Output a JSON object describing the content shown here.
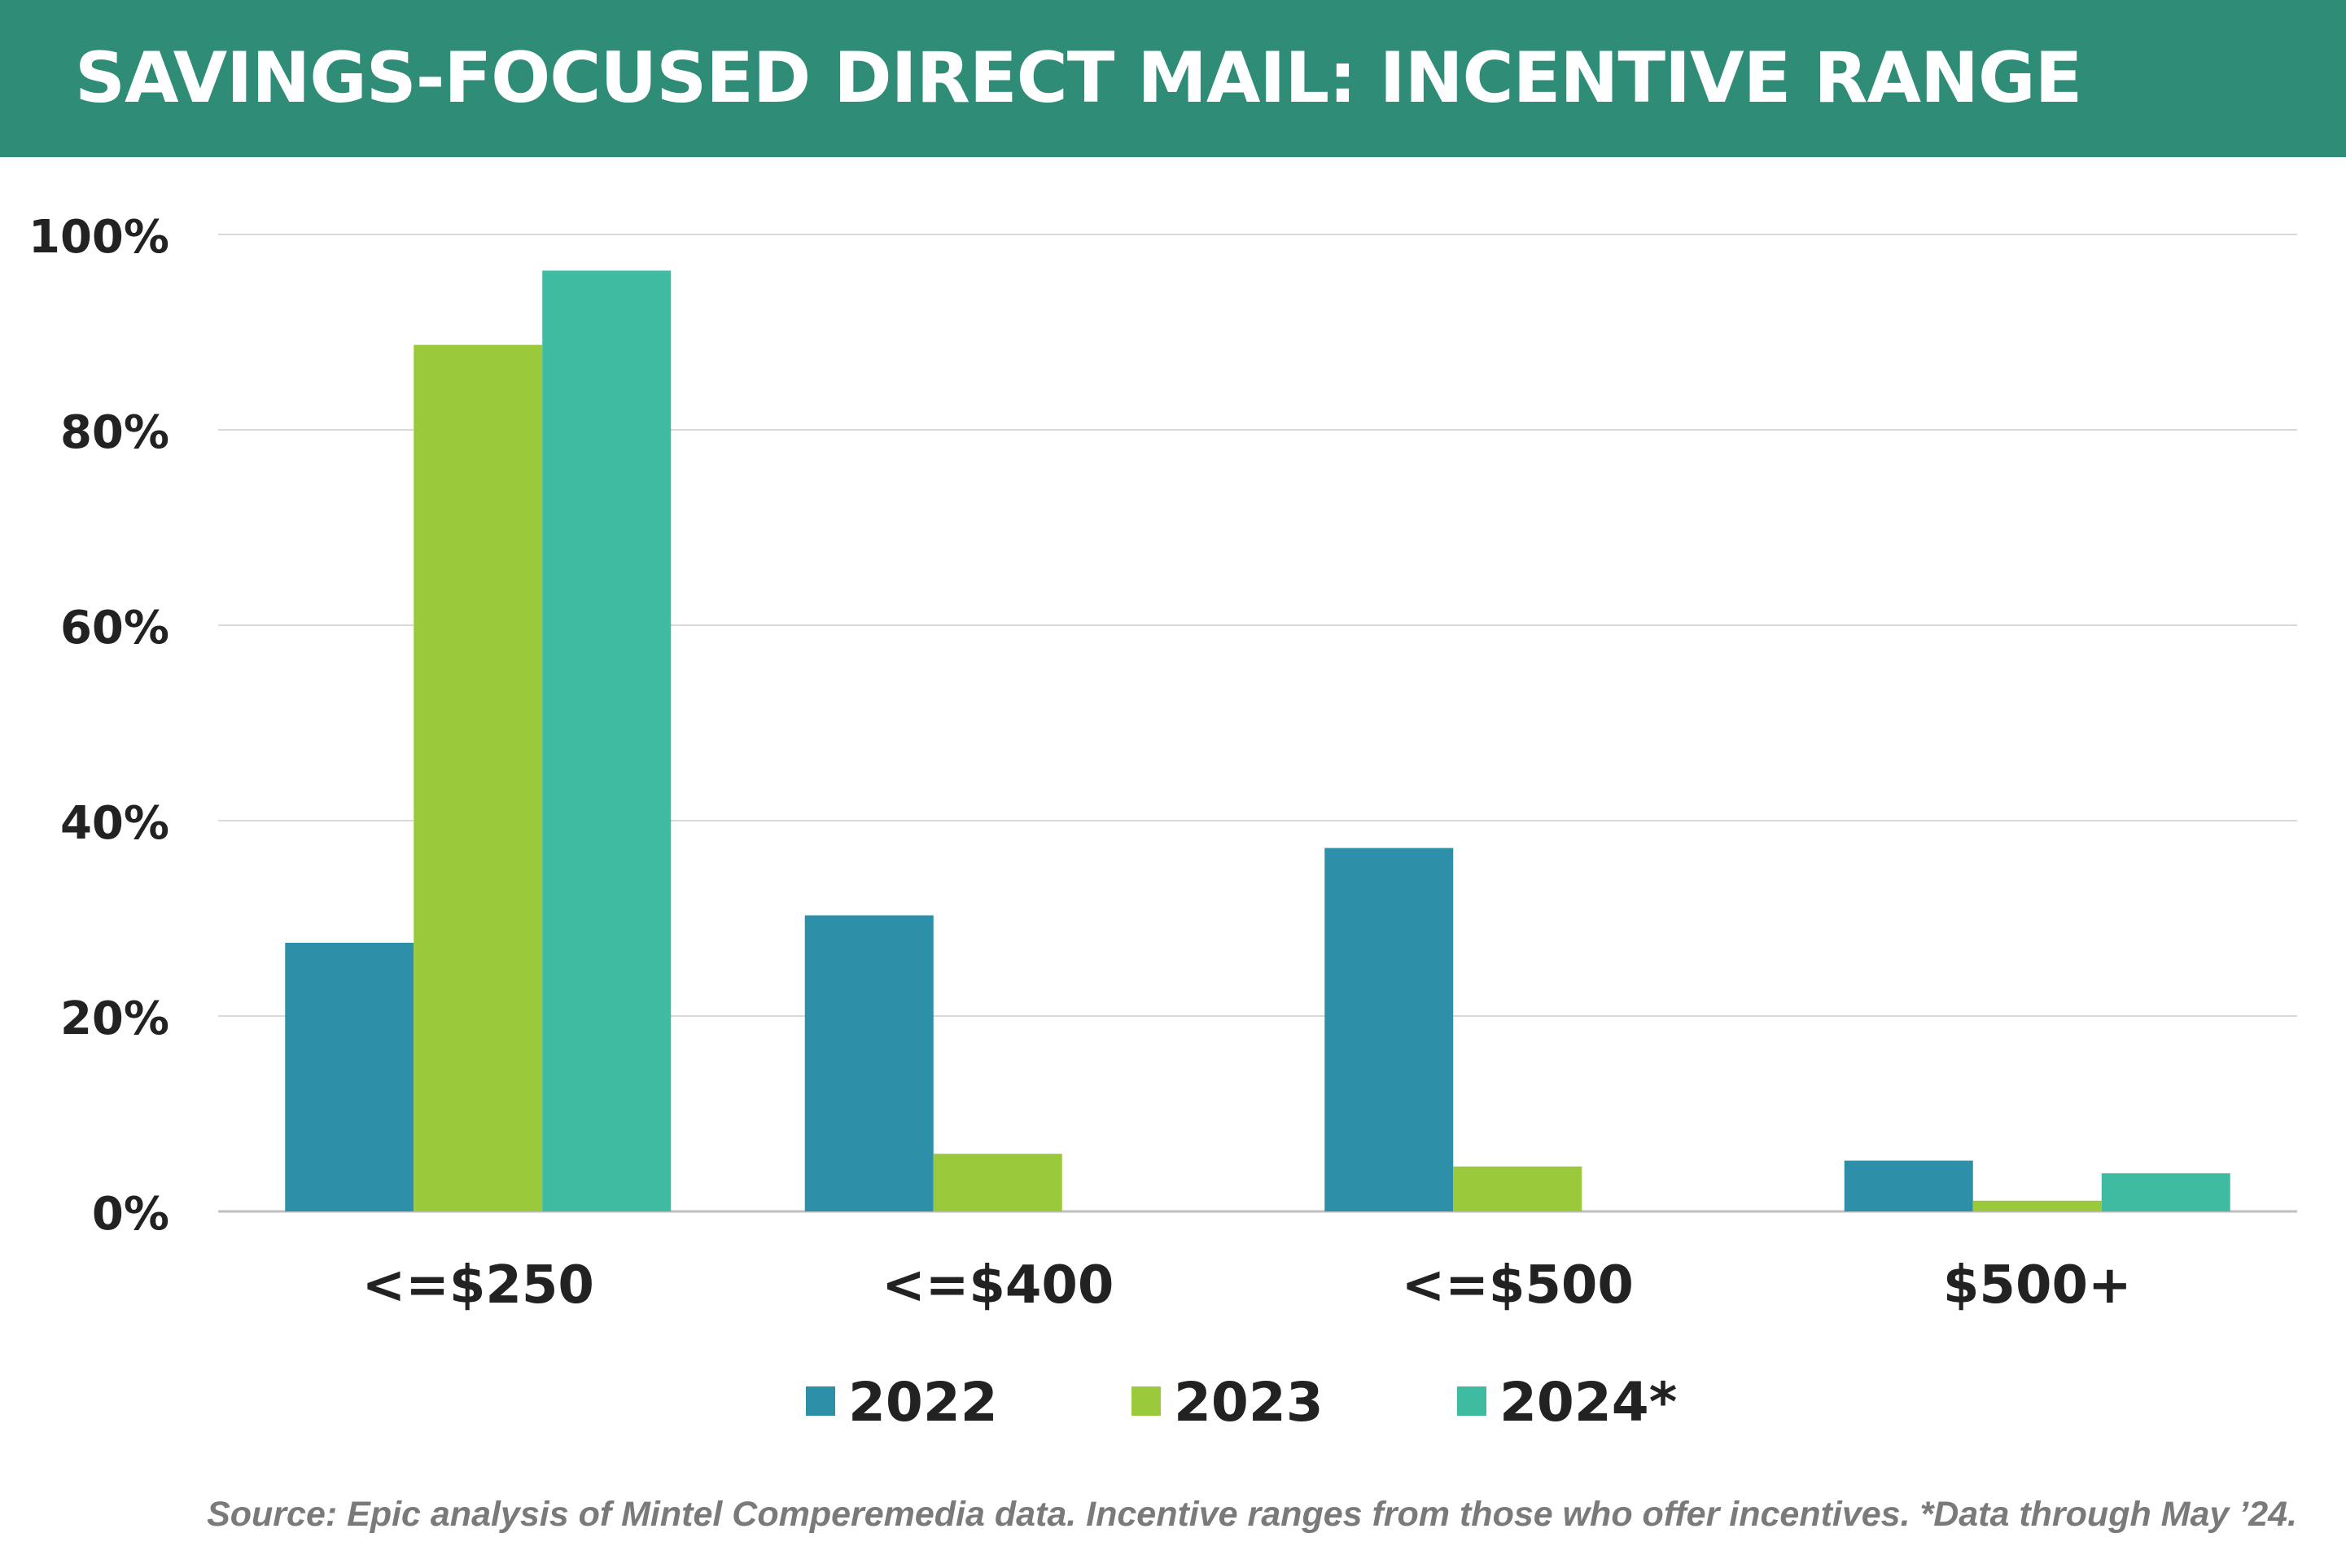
{
  "title": "SAVINGS-FOCUSED DIRECT MAIL: INCENTIVE RANGE",
  "source_note": "Source: Epic analysis of Mintel Comperemedia data. Incentive ranges from those who offer incentives. *Data through May ’24.",
  "colors": {
    "header": "#2e8c77",
    "grid": "#d9d9d9",
    "text": "#222222",
    "source_text": "#7a7a7a"
  },
  "chart_data": {
    "type": "bar",
    "title": "SAVINGS-FOCUSED DIRECT MAIL: INCENTIVE RANGE",
    "xlabel": "",
    "ylabel": "",
    "ylim": [
      0,
      100
    ],
    "y_ticks": [
      0,
      20,
      40,
      60,
      80,
      100
    ],
    "y_tick_labels": [
      "0%",
      "20%",
      "40%",
      "60%",
      "80%",
      "100%"
    ],
    "grid": true,
    "legend_position": "bottom",
    "categories": [
      "<=$250",
      "<=$400",
      "<=$500",
      "$500+"
    ],
    "series": [
      {
        "name": "2022",
        "color": "#2e8fa8",
        "values": [
          27.5,
          30.3,
          37.2,
          5.2
        ]
      },
      {
        "name": "2023",
        "color": "#9aca3c",
        "values": [
          88.7,
          5.9,
          4.6,
          1.1
        ]
      },
      {
        "name": "2024*",
        "color": "#3fbba1",
        "values": [
          96.3,
          0,
          0,
          3.9
        ]
      }
    ]
  }
}
